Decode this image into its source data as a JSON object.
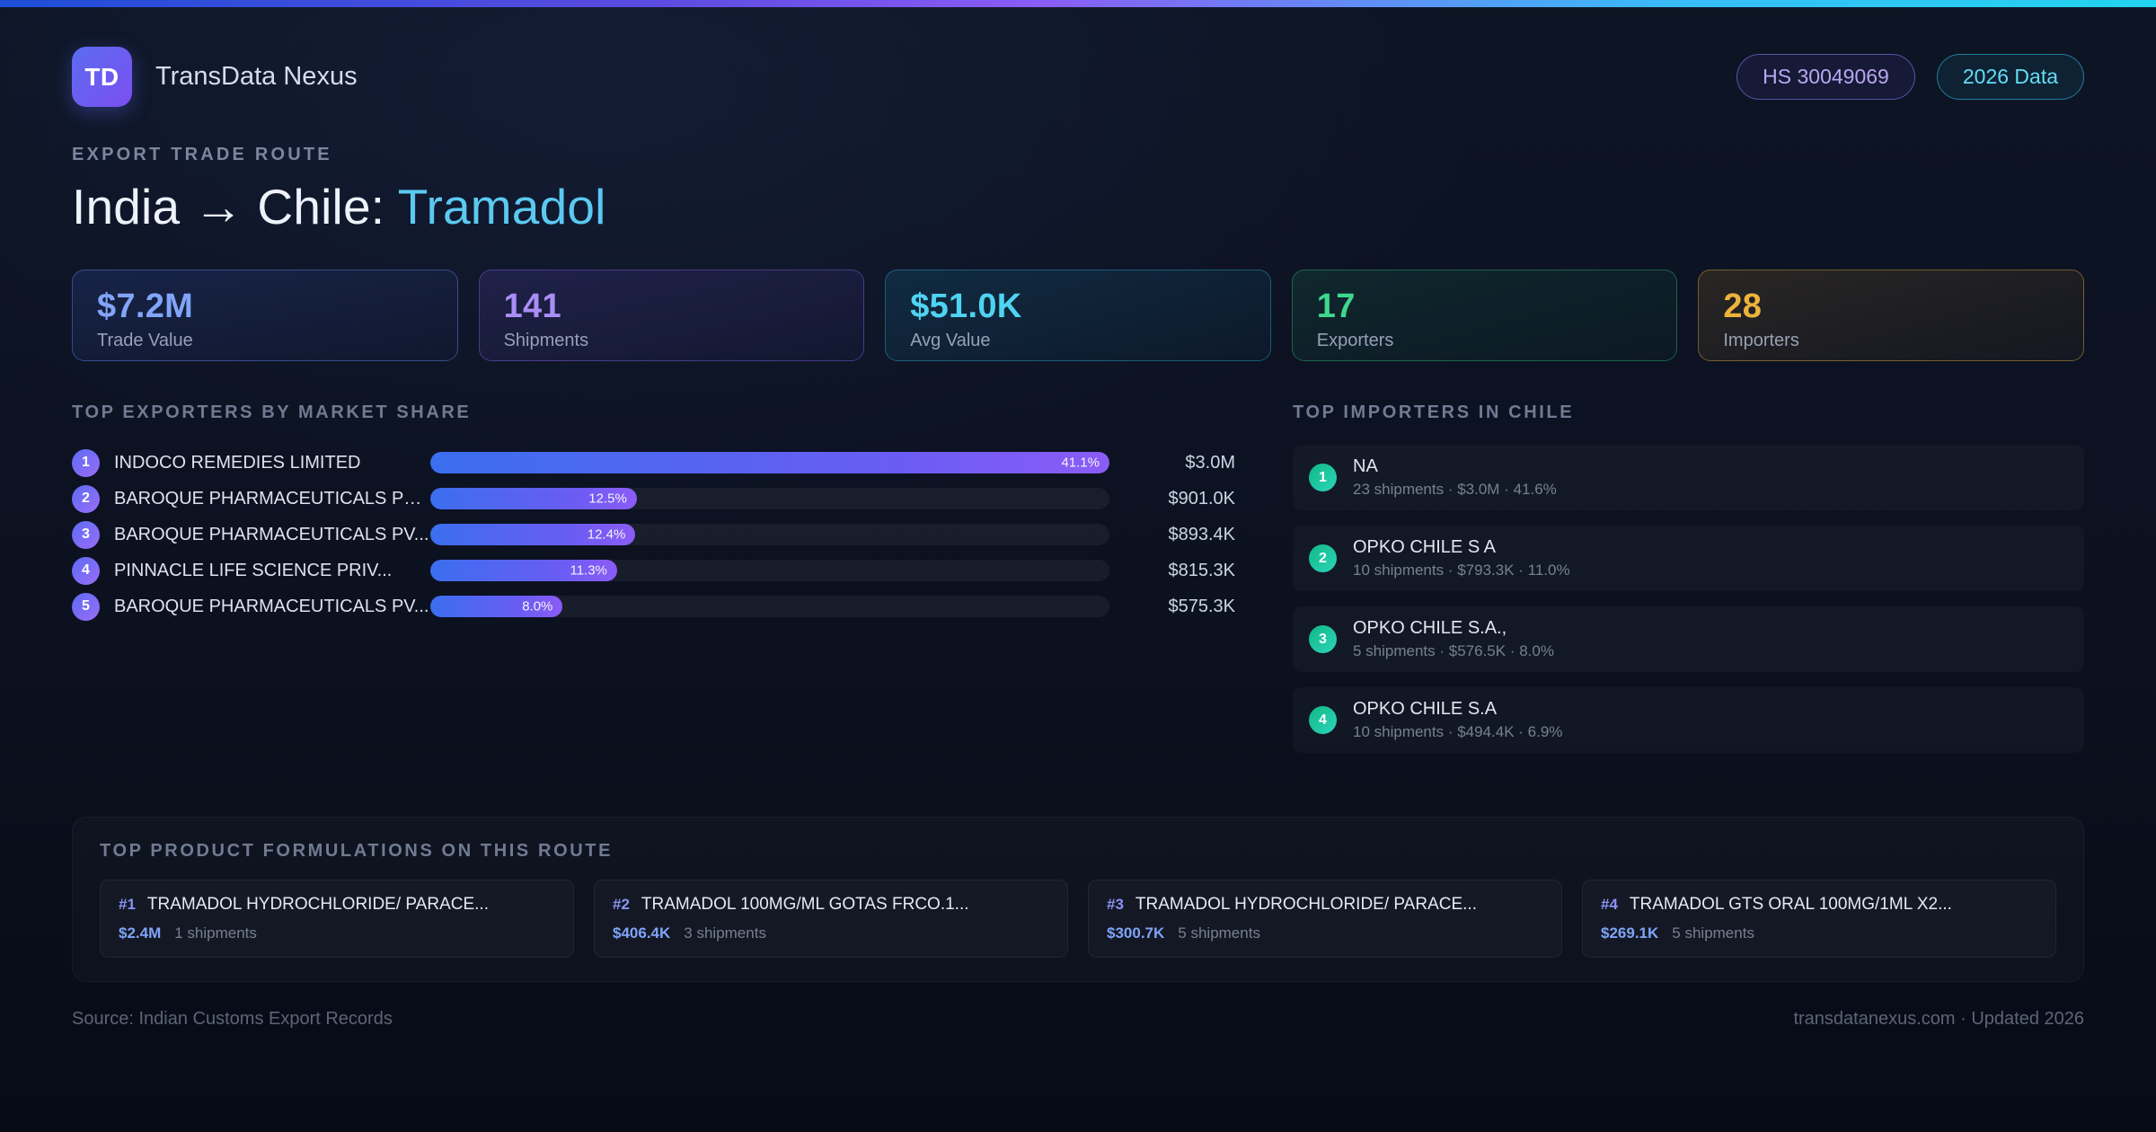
{
  "palette": {
    "accent_blue": "#82a5f9",
    "accent_purple": "#a98ef7",
    "accent_cyan": "#4ed3f2",
    "accent_green": "#3ed78e",
    "accent_amber": "#edb33c",
    "title_highlight": "#5bc9f0",
    "bar_gradient_start": "#3b6ef0",
    "bar_gradient_end": "#8b5cf6"
  },
  "header": {
    "logo_text": "TD",
    "brand": "TransData Nexus",
    "badges": [
      {
        "label": "HS 30049069"
      },
      {
        "label": "2026 Data"
      }
    ]
  },
  "hero": {
    "eyebrow": "EXPORT TRADE ROUTE",
    "title_prefix": "India → Chile: ",
    "title_highlight": "Tramadol"
  },
  "stats": [
    {
      "value": "$7.2M",
      "label": "Trade Value"
    },
    {
      "value": "141",
      "label": "Shipments"
    },
    {
      "value": "$51.0K",
      "label": "Avg Value"
    },
    {
      "value": "17",
      "label": "Exporters"
    },
    {
      "value": "28",
      "label": "Importers"
    }
  ],
  "exporters": {
    "heading": "TOP EXPORTERS BY MARKET SHARE",
    "rows": [
      {
        "rank": "1",
        "name": "INDOCO REMEDIES LIMITED",
        "share_pct": 41.1,
        "share_label": "41.1%",
        "value": "$3.0M"
      },
      {
        "rank": "2",
        "name": "BAROQUE PHARMACEUTICALS PR...",
        "share_pct": 12.5,
        "share_label": "12.5%",
        "value": "$901.0K"
      },
      {
        "rank": "3",
        "name": "BAROQUE PHARMACEUTICALS PV...",
        "share_pct": 12.4,
        "share_label": "12.4%",
        "value": "$893.4K"
      },
      {
        "rank": "4",
        "name": "PINNACLE LIFE SCIENCE PRIV...",
        "share_pct": 11.3,
        "share_label": "11.3%",
        "value": "$815.3K"
      },
      {
        "rank": "5",
        "name": "BAROQUE PHARMACEUTICALS PV...",
        "share_pct": 8.0,
        "share_label": "8.0%",
        "value": "$575.3K"
      }
    ]
  },
  "importers": {
    "heading": "TOP IMPORTERS IN CHILE",
    "rows": [
      {
        "rank": "1",
        "name": "NA",
        "meta": "23 shipments · $3.0M · 41.6%"
      },
      {
        "rank": "2",
        "name": "OPKO CHILE S A",
        "meta": "10 shipments · $793.3K · 11.0%"
      },
      {
        "rank": "3",
        "name": "OPKO CHILE S.A.,",
        "meta": "5 shipments · $576.5K · 8.0%"
      },
      {
        "rank": "4",
        "name": "OPKO CHILE S.A",
        "meta": "10 shipments · $494.4K · 6.9%"
      }
    ]
  },
  "products": {
    "heading": "TOP PRODUCT FORMULATIONS ON THIS ROUTE",
    "cards": [
      {
        "rank": "#1",
        "name": "TRAMADOL HYDROCHLORIDE/ PARACE...",
        "value": "$2.4M",
        "shipments": "1 shipments"
      },
      {
        "rank": "#2",
        "name": "TRAMADOL 100MG/ML GOTAS FRCO.1...",
        "value": "$406.4K",
        "shipments": "3 shipments"
      },
      {
        "rank": "#3",
        "name": "TRAMADOL HYDROCHLORIDE/ PARACE...",
        "value": "$300.7K",
        "shipments": "5 shipments"
      },
      {
        "rank": "#4",
        "name": "TRAMADOL GTS ORAL 100MG/1ML X2...",
        "value": "$269.1K",
        "shipments": "5 shipments"
      }
    ]
  },
  "footer": {
    "source": "Source: Indian Customs Export Records",
    "site": "transdatanexus.com · Updated 2026"
  }
}
